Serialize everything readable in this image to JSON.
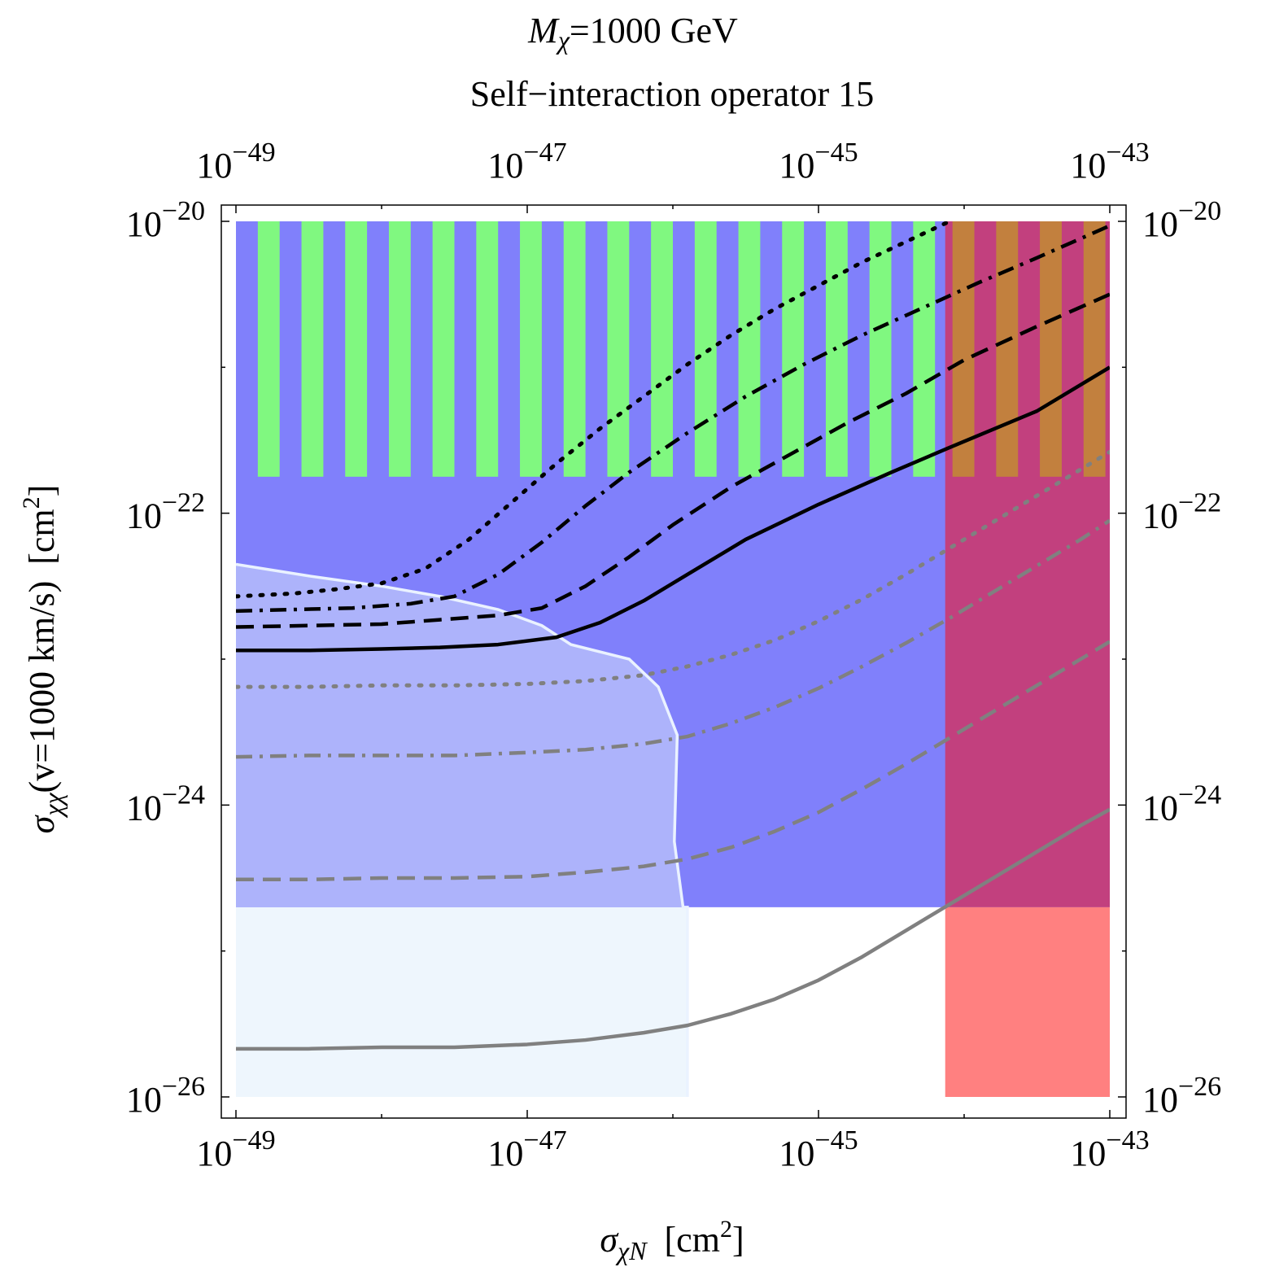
{
  "chart_data": {
    "type": "line",
    "title_mass_symbol": "M",
    "title_mass_sub": "χ",
    "title_mass_value": "=1000 GeV",
    "subtitle": "Self−interaction operator 15",
    "xscale": "log10",
    "yscale": "log10",
    "xlim": [
      -49,
      -43
    ],
    "ylim": [
      -26,
      -20
    ],
    "tick_base": "10",
    "x_tick_exponents": [
      "−49",
      "−47",
      "−45",
      "−43"
    ],
    "y_tick_exponents": [
      "−20",
      "−22",
      "−24",
      "−26"
    ],
    "xlabel": {
      "sym": "σ",
      "sub": "χN",
      "unit": "[cm",
      "sup": "2",
      "close": "]"
    },
    "ylabel": {
      "sym": "σ",
      "sub": "χχ",
      "cond": "(v=1000 km/s)",
      "unit": "[cm",
      "sup": "2",
      "close": "]"
    },
    "colors": {
      "blue_region": "#8080fb",
      "light_blue_region": "#adb3fb",
      "pale_region": "#eef6fd",
      "green_stripes": "#80f880",
      "magenta_region": "#c2407e",
      "orange_stripes": "#c2803e",
      "red_region": "#ff8080",
      "boundary": "#eaf2ff",
      "black_curves": "#000000",
      "gray_curves": "#808080"
    },
    "regions": [
      {
        "name": "blue-excluded-region",
        "x": [
          -49,
          -43
        ],
        "y": [
          -24.7,
          -20
        ],
        "color": "blue_region"
      },
      {
        "name": "pale-region",
        "x": [
          -49,
          -45.9
        ],
        "y": [
          -26,
          -24.7
        ],
        "color": "pale_region"
      },
      {
        "name": "magenta-region",
        "x": [
          -44.13,
          -43
        ],
        "y": [
          -24.7,
          -20
        ],
        "color": "magenta_region"
      },
      {
        "name": "red-region",
        "x": [
          -44.13,
          -43
        ],
        "y": [
          -26,
          -24.7
        ],
        "color": "red_region"
      },
      {
        "name": "green-stripe-band",
        "x": [
          -49,
          -44.13
        ],
        "y": [
          -21.75,
          -20
        ],
        "color": "green_stripes",
        "stripe_start": -48.85,
        "stripe_period": 0.3,
        "stripe_width": 0.15
      },
      {
        "name": "orange-stripe-band",
        "x": [
          -44.13,
          -43
        ],
        "y": [
          -21.75,
          -20
        ],
        "color": "orange_stripes",
        "stripe_start": -44.08,
        "stripe_period": 0.3,
        "stripe_width": 0.15
      }
    ],
    "light_region_boundary": [
      [
        -49,
        -22.35
      ],
      [
        -48.5,
        -22.43
      ],
      [
        -48.0,
        -22.5
      ],
      [
        -47.6,
        -22.57
      ],
      [
        -47.2,
        -22.66
      ],
      [
        -46.9,
        -22.77
      ],
      [
        -46.7,
        -22.9
      ],
      [
        -46.3,
        -23.0
      ],
      [
        -46.1,
        -23.19
      ],
      [
        -45.97,
        -23.52
      ],
      [
        -45.99,
        -24.25
      ],
      [
        -45.93,
        -24.7
      ],
      [
        -45.9,
        -24.7
      ],
      [
        -45.9,
        -26
      ]
    ],
    "series": [
      {
        "name": "black-solid",
        "color": "black",
        "dash": "solid",
        "x": [
          -49,
          -48.5,
          -48.0,
          -47.6,
          -47.2,
          -46.8,
          -46.5,
          -46.2,
          -45.9,
          -45.5,
          -45.0,
          -44.5,
          -44.1,
          -43.5,
          -43.0
        ],
        "y": [
          -22.94,
          -22.94,
          -22.93,
          -22.92,
          -22.9,
          -22.85,
          -22.75,
          -22.6,
          -22.42,
          -22.18,
          -21.94,
          -21.72,
          -21.55,
          -21.3,
          -21.0
        ]
      },
      {
        "name": "black-dashed",
        "color": "black",
        "dash": "dashed",
        "x": [
          -49,
          -48.5,
          -48.0,
          -47.6,
          -47.2,
          -46.9,
          -46.6,
          -46.3,
          -46.0,
          -45.6,
          -45.2,
          -44.8,
          -44.4,
          -44.0,
          -43.5,
          -43.0
        ],
        "y": [
          -22.78,
          -22.77,
          -22.76,
          -22.73,
          -22.7,
          -22.65,
          -22.5,
          -22.3,
          -22.08,
          -21.82,
          -21.6,
          -21.38,
          -21.18,
          -20.95,
          -20.72,
          -20.5
        ]
      },
      {
        "name": "black-dash-dot",
        "color": "black",
        "dash": "dashdot",
        "x": [
          -49,
          -48.6,
          -48.2,
          -47.8,
          -47.5,
          -47.2,
          -46.9,
          -46.6,
          -46.3,
          -45.9,
          -45.5,
          -45.1,
          -44.7,
          -44.3,
          -43.9,
          -43.5,
          -43.0
        ],
        "y": [
          -22.67,
          -22.66,
          -22.65,
          -22.62,
          -22.57,
          -22.42,
          -22.2,
          -21.95,
          -21.72,
          -21.45,
          -21.2,
          -20.98,
          -20.78,
          -20.6,
          -20.42,
          -20.25,
          -20.03
        ]
      },
      {
        "name": "black-dotted",
        "color": "black",
        "dash": "dotted",
        "x": [
          -49,
          -48.6,
          -48.3,
          -48.0,
          -47.7,
          -47.4,
          -47.1,
          -46.8,
          -46.5,
          -46.2,
          -45.9,
          -45.6,
          -45.3,
          -45.0,
          -44.7,
          -44.4,
          -44.1
        ],
        "y": [
          -22.57,
          -22.55,
          -22.52,
          -22.48,
          -22.38,
          -22.18,
          -21.92,
          -21.66,
          -21.42,
          -21.2,
          -20.98,
          -20.78,
          -20.6,
          -20.44,
          -20.28,
          -20.14,
          -20.0
        ]
      },
      {
        "name": "gray-solid",
        "color": "gray",
        "dash": "solid",
        "x": [
          -49,
          -48.5,
          -48.0,
          -47.5,
          -47.0,
          -46.6,
          -46.2,
          -45.9,
          -45.6,
          -45.3,
          -45.0,
          -44.7,
          -44.4,
          -44.1,
          -43.8,
          -43.5,
          -43.2,
          -43.0
        ],
        "y": [
          -25.67,
          -25.67,
          -25.66,
          -25.66,
          -25.64,
          -25.61,
          -25.56,
          -25.51,
          -25.43,
          -25.33,
          -25.2,
          -25.04,
          -24.86,
          -24.68,
          -24.5,
          -24.32,
          -24.14,
          -24.03
        ]
      },
      {
        "name": "gray-dashed",
        "color": "gray",
        "dash": "dashed",
        "x": [
          -49,
          -48.5,
          -48.0,
          -47.5,
          -47.0,
          -46.6,
          -46.2,
          -45.9,
          -45.6,
          -45.3,
          -45.0,
          -44.7,
          -44.4,
          -44.1,
          -43.8,
          -43.5,
          -43.2,
          -43.0
        ],
        "y": [
          -24.51,
          -24.51,
          -24.5,
          -24.5,
          -24.49,
          -24.46,
          -24.42,
          -24.37,
          -24.29,
          -24.18,
          -24.05,
          -23.89,
          -23.72,
          -23.54,
          -23.36,
          -23.18,
          -23.0,
          -22.88
        ]
      },
      {
        "name": "gray-dash-dot",
        "color": "gray",
        "dash": "dashdot",
        "x": [
          -49,
          -48.5,
          -48.0,
          -47.5,
          -47.0,
          -46.6,
          -46.2,
          -45.9,
          -45.6,
          -45.3,
          -45.0,
          -44.7,
          -44.4,
          -44.1,
          -43.8,
          -43.5,
          -43.2,
          -43.0
        ],
        "y": [
          -23.67,
          -23.66,
          -23.66,
          -23.66,
          -23.64,
          -23.62,
          -23.58,
          -23.53,
          -23.44,
          -23.33,
          -23.2,
          -23.05,
          -22.89,
          -22.72,
          -22.54,
          -22.36,
          -22.18,
          -22.05
        ]
      },
      {
        "name": "gray-dotted",
        "color": "gray",
        "dash": "dotted",
        "x": [
          -49,
          -48.5,
          -48.0,
          -47.5,
          -47.0,
          -46.6,
          -46.2,
          -45.9,
          -45.6,
          -45.3,
          -45.0,
          -44.7,
          -44.4,
          -44.1,
          -43.8,
          -43.5,
          -43.2,
          -43.0
        ],
        "y": [
          -23.19,
          -23.19,
          -23.18,
          -23.18,
          -23.17,
          -23.15,
          -23.11,
          -23.05,
          -22.97,
          -22.87,
          -22.74,
          -22.59,
          -22.42,
          -22.24,
          -22.06,
          -21.88,
          -21.7,
          -21.58
        ]
      }
    ]
  }
}
